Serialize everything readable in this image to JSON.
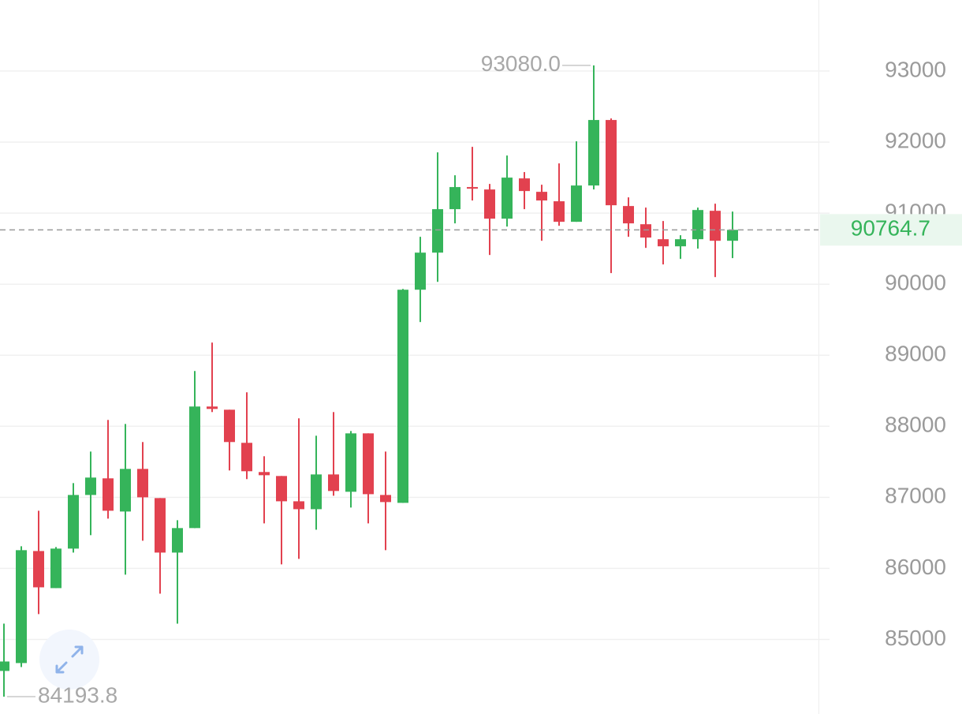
{
  "chart_data": {
    "type": "candlestick",
    "open": [
      84556,
      84667,
      86244,
      85722,
      86278,
      87033,
      87267,
      86800,
      87400,
      86989,
      86222,
      86567,
      88278,
      88233,
      87767,
      87356,
      87300,
      86944,
      86833,
      87322,
      87078,
      87900,
      87033,
      86922,
      89922,
      90444,
      91056,
      91367,
      91333,
      90922,
      91489,
      91300,
      91167,
      90878,
      91389,
      92311,
      91100,
      90844,
      90633,
      90533,
      90633,
      91033,
      90611
    ],
    "high": [
      85222,
      86311,
      86811,
      86300,
      87200,
      87644,
      88089,
      88033,
      87778,
      86989,
      86678,
      88778,
      89178,
      88233,
      88478,
      87578,
      87300,
      88111,
      87867,
      88200,
      87933,
      87900,
      87644,
      89933,
      90667,
      91856,
      91533,
      91933,
      91411,
      91811,
      91578,
      91400,
      91700,
      92011,
      93080,
      92333,
      91222,
      91078,
      90889,
      90689,
      91078,
      91133,
      91022
    ],
    "low": [
      84193.8,
      84611,
      85356,
      85722,
      86222,
      86467,
      86700,
      85911,
      86389,
      85644,
      85222,
      86567,
      88200,
      87378,
      87256,
      86633,
      86056,
      86133,
      86544,
      87022,
      86856,
      86633,
      86256,
      86922,
      89467,
      90033,
      90856,
      91178,
      90411,
      90811,
      91056,
      90611,
      90822,
      90878,
      91333,
      90156,
      90667,
      90511,
      90278,
      90356,
      90500,
      90100,
      90367
    ],
    "close": [
      84689,
      86256,
      85733,
      86278,
      87033,
      87278,
      86811,
      87400,
      87000,
      86222,
      86567,
      88278,
      88244,
      87778,
      87367,
      87311,
      86944,
      86833,
      87322,
      87089,
      87900,
      87044,
      86933,
      89922,
      90444,
      91056,
      91367,
      91344,
      90922,
      91500,
      91311,
      91178,
      90878,
      91389,
      92311,
      91111,
      90856,
      90656,
      90533,
      90633,
      91044,
      90611,
      90764.7
    ],
    "up_color": "#35b45a",
    "down_color": "#e2414f",
    "ylim": [
      83950,
      94000
    ],
    "yticks": [
      85000,
      86000,
      87000,
      88000,
      89000,
      90000,
      91000,
      92000,
      93000
    ],
    "grid": true,
    "annotations": [
      {
        "value": 93080,
        "label": "93080.0"
      },
      {
        "value": 84193.8,
        "label": "84193.8"
      }
    ]
  }
}
